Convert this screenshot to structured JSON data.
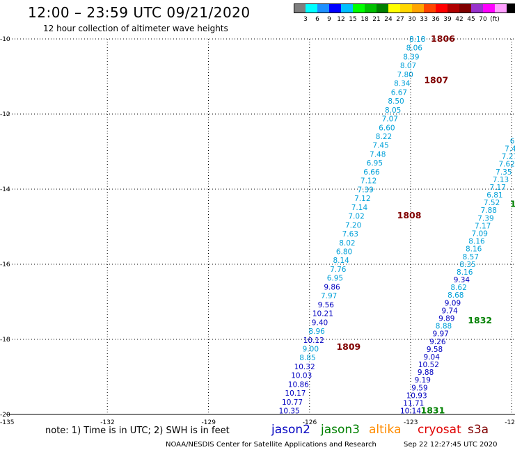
{
  "header": {
    "title": "12:00 – 23:59 UTC 09/21/2020",
    "subtitle": "12 hour collection of altimeter wave heights"
  },
  "colorbar": {
    "swatches": [
      "#7f7f7f",
      "#00ffff",
      "#1e90ff",
      "#0000ff",
      "#00bfff",
      "#00ff00",
      "#00c000",
      "#008000",
      "#ffff00",
      "#ffd700",
      "#ffa500",
      "#ff4500",
      "#ff0000",
      "#b00000",
      "#800000",
      "#9932cc",
      "#ff00ff",
      "#ffa0ff",
      "#000000"
    ],
    "labels": [
      "3",
      "6",
      "9",
      "12",
      "15",
      "18",
      "21",
      "24",
      "27",
      "30",
      "33",
      "36",
      "39",
      "42",
      "45",
      "70",
      "(ft)"
    ]
  },
  "axes": {
    "x_ticks": [
      "-135",
      "-132",
      "-129",
      "-126",
      "-123",
      "-12"
    ],
    "y_ticks": [
      "-10",
      "-12",
      "-14",
      "-16",
      "-18",
      "-20"
    ]
  },
  "colors": {
    "jason2": "#0000c0",
    "jason3": "#008000",
    "altika": "#ff8c00",
    "cryosat": "#e00000",
    "s3a": "#800000",
    "light_blue": "#00a0d8",
    "time_label_dark": "#800000",
    "time_label_green": "#008000"
  },
  "tracks": [
    {
      "name": "track-left",
      "start_lon": -122.8,
      "start_lat": -10.0,
      "end_lon": -126.6,
      "end_lat": -19.9,
      "values": [
        "8.18",
        "8.06",
        "8.39",
        "8.07",
        "7.80",
        "8.34",
        "6.67",
        "8.50",
        "8.05",
        "7.07",
        "6.60",
        "8.22",
        "7.45",
        "7.48",
        "6.95",
        "6.66",
        "7.12",
        "7.39",
        "7.12",
        "7.14",
        "7.02",
        "7.20",
        "7.63",
        "8.02",
        "6.80",
        "8.14",
        "7.76",
        "6.95",
        "9.86",
        "7.97",
        "9.56",
        "10.21",
        "9.40",
        "8.96",
        "10.12",
        "9.00",
        "8.85",
        "10.32",
        "10.03",
        "10.86",
        "10.17",
        "10.77",
        "10.35"
      ],
      "value_colors": [
        "lb",
        "lb",
        "lb",
        "lb",
        "lb",
        "lb",
        "lb",
        "lb",
        "lb",
        "lb",
        "lb",
        "lb",
        "lb",
        "lb",
        "lb",
        "lb",
        "lb",
        "lb",
        "lb",
        "lb",
        "lb",
        "lb",
        "lb",
        "lb",
        "lb",
        "lb",
        "lb",
        "lb",
        "db",
        "lb",
        "db",
        "db",
        "db",
        "lb",
        "db",
        "lb",
        "lb",
        "db",
        "db",
        "db",
        "db",
        "db",
        "db"
      ]
    },
    {
      "name": "track-right",
      "start_lon": -119.7,
      "start_lat": -12.3,
      "end_lon": -123.0,
      "end_lat": -19.9,
      "values": [
        "6",
        "6.",
        "6.7",
        "7.44",
        "7.27",
        "7.62",
        "7.35",
        "7.13",
        "7.17",
        "6.81",
        "7.52",
        "7.88",
        "7.39",
        "7.17",
        "7.09",
        "8.16",
        "8.16",
        "8.57",
        "8.35",
        "8.16",
        "9.34",
        "8.62",
        "8.68",
        "9.09",
        "9.74",
        "9.89",
        "8.88",
        "9.97",
        "9.26",
        "9.58",
        "9.04",
        "10.52",
        "9.88",
        "9.19",
        "9.59",
        "10.93",
        "11.71",
        "10.14"
      ],
      "value_colors": [
        "lb",
        "lb",
        "lb",
        "lb",
        "lb",
        "lb",
        "lb",
        "lb",
        "lb",
        "lb",
        "lb",
        "lb",
        "lb",
        "lb",
        "lb",
        "lb",
        "lb",
        "lb",
        "lb",
        "lb",
        "db",
        "lb",
        "lb",
        "db",
        "db",
        "db",
        "lb",
        "db",
        "db",
        "db",
        "db",
        "db",
        "db",
        "db",
        "db",
        "db",
        "db",
        "db"
      ]
    }
  ],
  "time_labels": [
    {
      "text": "1806",
      "lon": -122.4,
      "lat": -10.0,
      "color": "dark"
    },
    {
      "text": "1807",
      "lon": -122.6,
      "lat": -11.1,
      "color": "dark"
    },
    {
      "text": "1808",
      "lon": -123.4,
      "lat": -14.7,
      "color": "dark"
    },
    {
      "text": "1809",
      "lon": -125.2,
      "lat": -18.2,
      "color": "dark"
    },
    {
      "text": "1832",
      "lon": -121.3,
      "lat": -17.5,
      "color": "green"
    },
    {
      "text": "1831",
      "lon": -122.7,
      "lat": -19.9,
      "color": "green"
    },
    {
      "text": "1",
      "lon": -120.05,
      "lat": -14.4,
      "color": "green"
    }
  ],
  "footer": {
    "note": "note: 1) Time is in UTC; 2) SWH is in feet",
    "legend": [
      "jason2",
      "jason3",
      "altika",
      "cryosat",
      "s3a"
    ],
    "credit": "NOAA/NESDIS Center for Satellite Applications and Research",
    "timestamp": "Sep 22 12:27:45 UTC 2020"
  }
}
